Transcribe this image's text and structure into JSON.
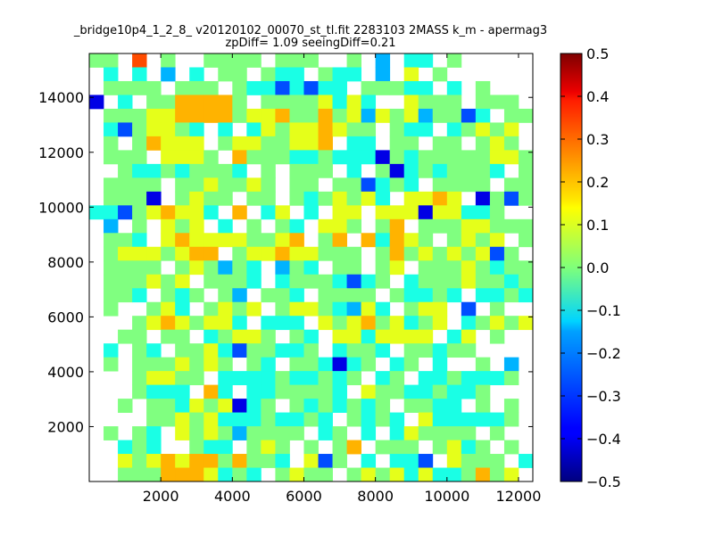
{
  "chart_data": {
    "type": "heatmap",
    "title_line1": "_bridge10p4_1_2_8_ v20120102_00070_st_tl.fit 2283103 2MASS k_m - apermag3",
    "title_line2": "zpDiff= 1.09 seeingDiff=0.21",
    "xlabel": "",
    "ylabel": "",
    "xlim": [
      0,
      12400
    ],
    "ylim": [
      0,
      15600
    ],
    "x_ticks": [
      2000,
      4000,
      6000,
      8000,
      10000,
      12000
    ],
    "y_ticks": [
      2000,
      4000,
      6000,
      8000,
      10000,
      12000,
      14000
    ],
    "x_tick_labels": [
      "2000",
      "4000",
      "6000",
      "8000",
      "10000",
      "12000"
    ],
    "y_tick_labels": [
      "2000",
      "4000",
      "6000",
      "8000",
      "10000",
      "12000",
      "14000"
    ],
    "colorbar": {
      "colormap": "jet",
      "range": [
        -0.5,
        0.5
      ],
      "ticks": [
        0.5,
        0.4,
        0.3,
        0.2,
        0.1,
        0.0,
        -0.1,
        -0.2,
        -0.3,
        -0.4,
        -0.5
      ],
      "tick_labels": [
        "0.5",
        "0.4",
        "0.3",
        "0.2",
        "0.1",
        "0.0",
        "−0.1",
        "−0.2",
        "−0.3",
        "−0.4",
        "−0.5"
      ]
    },
    "grid": false,
    "rows_top_to_bottom": [
      "00.3.0..0000.000..-0.-2.-1-1.0..",
      ".-1.-1.-2.-1.00.0-1-1.0-1-1.-2.1.0..",
      ".0000.000.0-1-1-3-1-3-1-1.000-1-1.-1.0..",
      "-4.-1.0022220.00001-11-1..1000.000.-1-1.0..",
      ".000112222011200201-2101-200-3-1.0001..",
      ".-1-30110-1.-1.-110112100.0-1-1.-10101..",
      ".0.02111.01100112.-1-1.00.00.010..",
      ".000.1110.2000-1-10-1-1-1-40-1000001101.2",
      "..0-1-10-1000-1.0.000.-1.0-4-10-1000-1.0..",
      ".0000.0010010.00.00-3-10-1.0000.000..",
      ".000-4.0100.00.0-10101-1.1121.-40-30.1",
      "-1-1-301211-1.2.-11.-1.11.111-411-1-10..1",
      ".-2.0.101.-1.0.0-1.110.02.000110000.0..",
      ".00-1.1211110012.02.2-1210.0101.0..",
      ".01110122.011211000.02010101-30.0.2",
      ".0000.010-20-1.-20-1.00.01.00010-1000..",
      ".000101.000-1.-1000-1-3-10.-1000100-10..",
      ".00-1.0-10.0-2.00-1.0000.0-1-10-1.-1-10-10..",
      ".0..01-1.0101.0110-1-21-1.011.-3.0..",
      "...0121011-1.-1-1-1.101201-101.-10101..",
      "..00.00.-10110.0-1.11-11111.-11.0..",
      ".-1.0-1.001-1-300-1-10.-100-1.00-100..",
      ".0.0001010.0-1.00-1-4-10.-10.-1..0.-2.",
      "...01100.-1-1-1-10-1-10-10.-10.-1-10-1-1-10..",
      "...0-1-1-1.2-1.-1-10000-1.100-1-10-1-10..",
      "..0.00-1101-4-10.0-10-10-10.00-1-1.0.0..",
      "....00101-1-1-10-1-10-1.0-10-1.1-1-1-1-1-10...",
      ".0.0-1.1010-20000.-10.-1.-110000.0..",
      "..-10-1..0-1-1.010.0.02.000.01-10.0..",
      "..10121220200-1.1-30.-1.-1-1-3.1000.-1..",
      "..0002221-10-1.0100.0101-11-1-10201.."
    ]
  }
}
